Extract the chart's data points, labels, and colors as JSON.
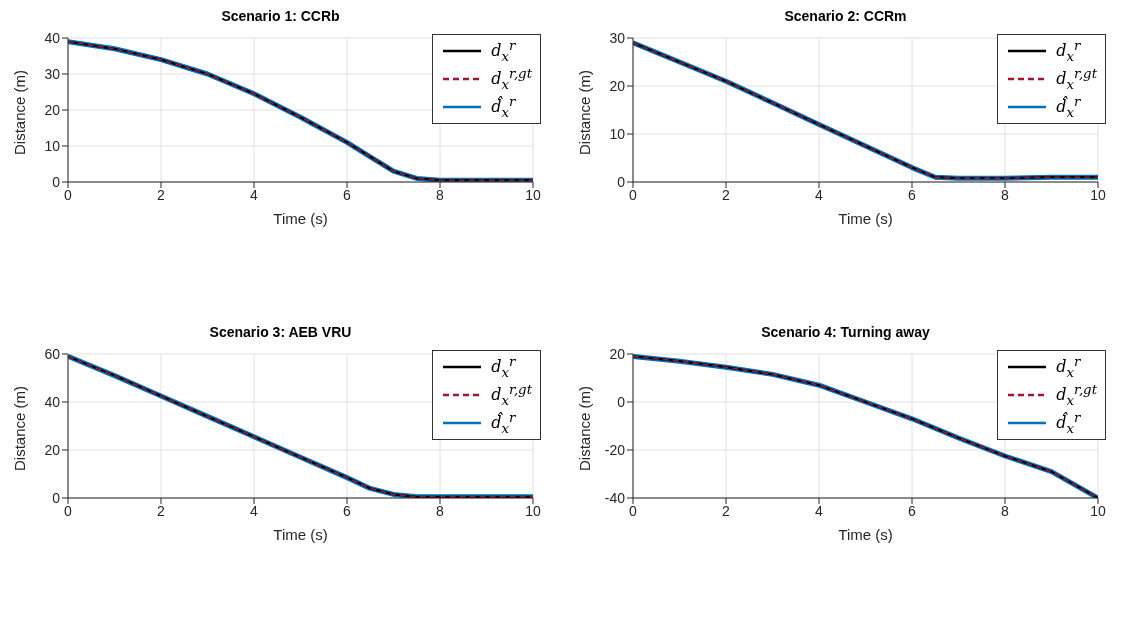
{
  "chart_data": [
    {
      "type": "line",
      "title": "Scenario 1: CCRb",
      "xlabel": "Time (s)",
      "ylabel": "Distance (m)",
      "xlim": [
        0,
        10
      ],
      "xticks": [
        0,
        2,
        4,
        6,
        8,
        10
      ],
      "ylim": [
        0,
        40
      ],
      "yticks": [
        0,
        10,
        20,
        30,
        40
      ],
      "grid": true,
      "legend": "top right",
      "x": [
        0,
        1,
        2,
        3,
        4,
        5,
        6,
        6.5,
        7,
        7.5,
        8,
        9,
        10
      ],
      "series": [
        {
          "name": "d$_{x}$$^{r}$",
          "color": "#000000",
          "line_style": "solid",
          "values": [
            39,
            37,
            34,
            30,
            24.5,
            18,
            11,
            7,
            3,
            1,
            0.5,
            0.5,
            0.5
          ]
        },
        {
          "name": "d$_{x}$$^{r,gt}$",
          "color": "#a2142f",
          "line_style": "dashed",
          "values": [
            39,
            37,
            34,
            30,
            24.5,
            18,
            11,
            7,
            3,
            1,
            0.5,
            0.5,
            0.5
          ]
        },
        {
          "name": "d̂$_{x}$$^{r}$",
          "color": "#0072bd",
          "line_style": "solid",
          "values": [
            39,
            37,
            34,
            30,
            24.5,
            18,
            11,
            7,
            3,
            1,
            0.5,
            0.5,
            0.5
          ]
        }
      ]
    },
    {
      "type": "line",
      "title": "Scenario 2: CCRm",
      "xlabel": "Time (s)",
      "ylabel": "Distance (m)",
      "xlim": [
        0,
        10
      ],
      "xticks": [
        0,
        2,
        4,
        6,
        8,
        10
      ],
      "ylim": [
        0,
        30
      ],
      "yticks": [
        0,
        10,
        20,
        30
      ],
      "grid": true,
      "legend": "top right",
      "x": [
        0,
        1,
        2,
        3,
        4,
        5,
        6,
        6.5,
        7,
        8,
        9,
        10
      ],
      "series": [
        {
          "name": "d$_{x}$$^{r}$",
          "color": "#000000",
          "line_style": "solid",
          "values": [
            29,
            25,
            21,
            16.5,
            12,
            7.5,
            3,
            1,
            0.8,
            0.8,
            1,
            1
          ]
        },
        {
          "name": "d$_{x}$$^{r,gt}$",
          "color": "#a2142f",
          "line_style": "dashed",
          "values": [
            29,
            25,
            21,
            16.5,
            12,
            7.5,
            3,
            1,
            0.8,
            0.8,
            1,
            1
          ]
        },
        {
          "name": "d̂$_{x}$$^{r}$",
          "color": "#0072bd",
          "line_style": "solid",
          "values": [
            29,
            25,
            21,
            16.5,
            12,
            7.5,
            3,
            1,
            0.8,
            0.8,
            1,
            1
          ]
        }
      ]
    },
    {
      "type": "line",
      "title": "Scenario 3: AEB VRU",
      "xlabel": "Time (s)",
      "ylabel": "Distance (m)",
      "xlim": [
        0,
        10
      ],
      "xticks": [
        0,
        2,
        4,
        6,
        8,
        10
      ],
      "ylim": [
        0,
        60
      ],
      "yticks": [
        0,
        20,
        40,
        60
      ],
      "grid": true,
      "legend": "top right",
      "x": [
        0,
        1,
        2,
        3,
        4,
        5,
        6,
        6.5,
        7,
        7.5,
        8,
        9,
        10
      ],
      "series": [
        {
          "name": "d$_{x}$$^{r}$",
          "color": "#000000",
          "line_style": "solid",
          "values": [
            59,
            51,
            42.5,
            34,
            25.5,
            17,
            8.5,
            4,
            1.5,
            0.5,
            0.5,
            0.5,
            0.5
          ]
        },
        {
          "name": "d$_{x}$$^{r,gt}$",
          "color": "#a2142f",
          "line_style": "dashed",
          "values": [
            59,
            51,
            42.5,
            34,
            25.5,
            17,
            8.5,
            4,
            1.5,
            0.5,
            0.5,
            0.5,
            0.5
          ]
        },
        {
          "name": "d̂$_{x}$$^{r}$",
          "color": "#0072bd",
          "line_style": "solid",
          "values": [
            59,
            51,
            42.5,
            34,
            25.5,
            17,
            8.5,
            4,
            1.5,
            0.5,
            0.5,
            0.5,
            0.5
          ]
        }
      ]
    },
    {
      "type": "line",
      "title": "Scenario 4: Turning away",
      "xlabel": "Time (s)",
      "ylabel": "Distance (m)",
      "xlim": [
        0,
        10
      ],
      "xticks": [
        0,
        2,
        4,
        6,
        8,
        10
      ],
      "ylim": [
        -40,
        20
      ],
      "yticks": [
        -40,
        -20,
        0,
        20
      ],
      "grid": true,
      "legend": "top right",
      "x": [
        0,
        1,
        2,
        3,
        4,
        5,
        6,
        7,
        8,
        9,
        10
      ],
      "series": [
        {
          "name": "d$_{x}$$^{r}$",
          "color": "#000000",
          "line_style": "solid",
          "values": [
            19,
            17,
            14.5,
            11.5,
            7,
            0,
            -7,
            -15,
            -22.5,
            -29,
            -40
          ]
        },
        {
          "name": "d$_{x}$$^{r,gt}$",
          "color": "#a2142f",
          "line_style": "dashed",
          "values": [
            19,
            17,
            14.5,
            11.5,
            7,
            0,
            -7,
            -15,
            -22.5,
            -29,
            -40
          ]
        },
        {
          "name": "d̂$_{x}$$^{r}$",
          "color": "#0072bd",
          "line_style": "solid",
          "values": [
            19,
            17,
            14.5,
            11.5,
            7,
            0,
            -7,
            -15,
            -22.5,
            -29,
            -40
          ]
        }
      ]
    }
  ]
}
